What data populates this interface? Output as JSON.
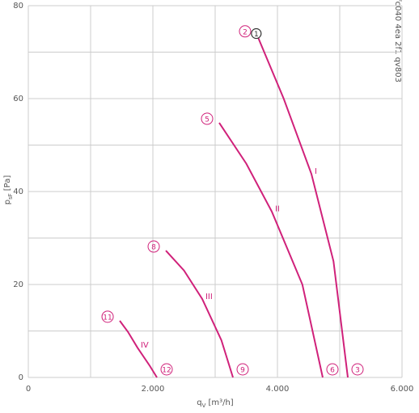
{
  "chart_data": {
    "type": "line",
    "side_note": "fc040 4ea 2f1 qv803",
    "xlabel": {
      "main": "q",
      "sub": "V",
      "unit": "[m³/h]"
    },
    "ylabel": {
      "main": "p",
      "sub": "sF",
      "unit": "[Pa]"
    },
    "xlim": [
      0,
      6000
    ],
    "ylim": [
      0,
      80
    ],
    "xticks": [
      0,
      {
        "value": 2000,
        "label": "2.000"
      },
      {
        "value": 4000,
        "label": "4.000"
      },
      {
        "value": 6000,
        "label": "6.000"
      }
    ],
    "yticks": [
      0,
      20,
      40,
      60,
      80
    ],
    "xminor": [
      1000,
      3000,
      5000
    ],
    "yminor": [
      10,
      30,
      50,
      70
    ],
    "grid": true,
    "color": "#d0217a",
    "operating_point": {
      "label": "1",
      "x": 3660,
      "y": 74
    },
    "series": [
      {
        "name": "I",
        "start_label": "2",
        "end_label": "3",
        "x": [
          3675,
          4100,
          4545,
          4900,
          5130
        ],
        "values": [
          73.6,
          60,
          43.8,
          25,
          0
        ]
      },
      {
        "name": "II",
        "start_label": "5",
        "end_label": "6",
        "x": [
          3065,
          3500,
          3909,
          4400,
          4727
        ],
        "values": [
          54.8,
          46,
          35.7,
          20,
          0
        ]
      },
      {
        "name": "III",
        "start_label": "8",
        "end_label": "9",
        "x": [
          2208,
          2500,
          2792,
          3100,
          3286
        ],
        "values": [
          27.3,
          23,
          16.9,
          8,
          0
        ]
      },
      {
        "name": "IV",
        "start_label": "11",
        "end_label": "12",
        "x": [
          1468,
          1600,
          1753,
          1950,
          2065
        ],
        "values": [
          12.2,
          9.8,
          6.4,
          2.5,
          0
        ]
      }
    ]
  }
}
